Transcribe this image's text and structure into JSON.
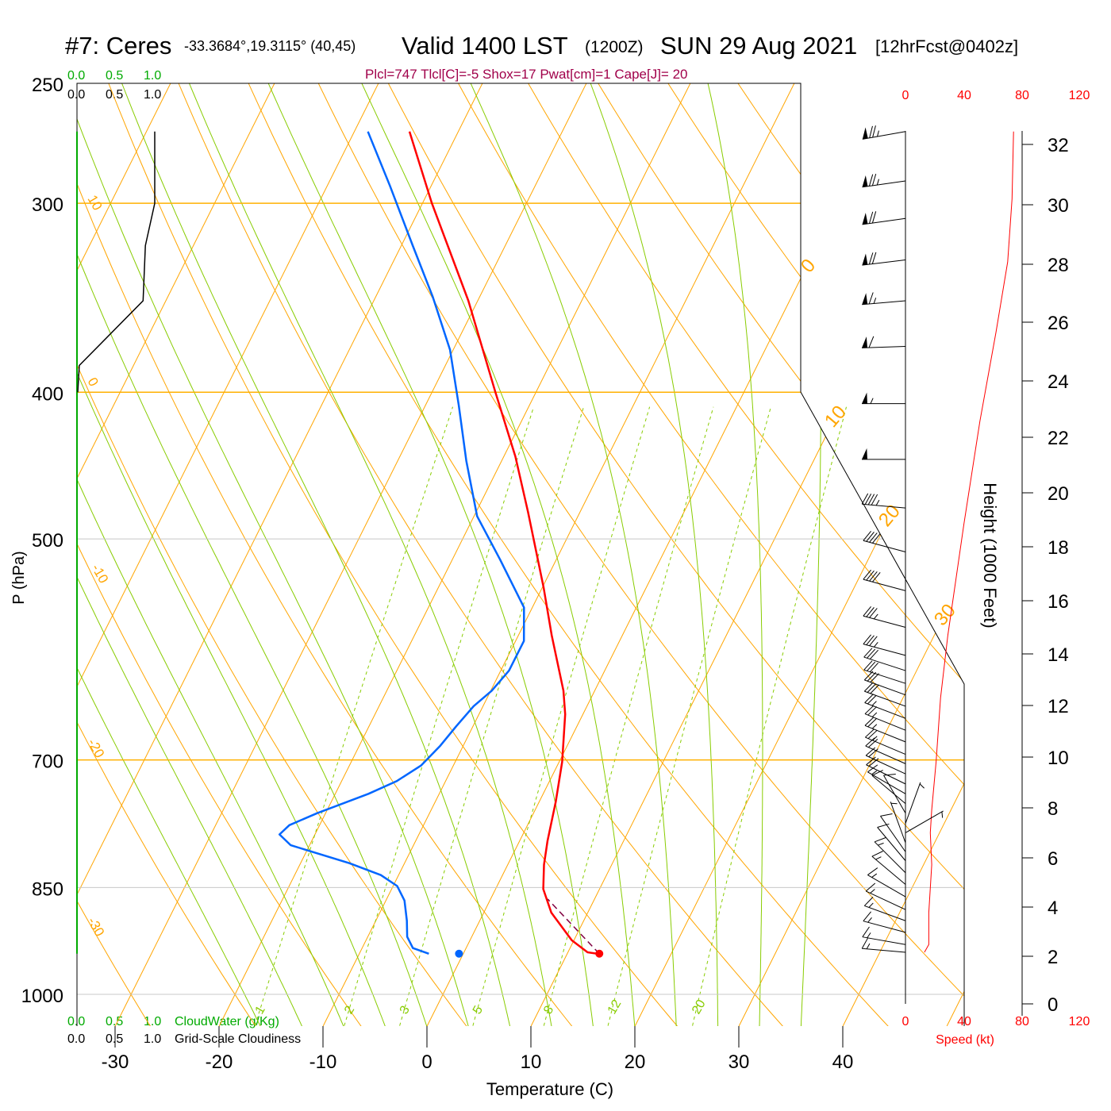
{
  "header": {
    "station": "#7: Ceres",
    "coords": "-33.3684°,19.3115° (40,45)",
    "valid": "Valid 1400 LST",
    "zulu": "(1200Z)",
    "date": "SUN 29 Aug 2021",
    "forecast": "[12hrFcst@0402z]",
    "indices": "Plcl=747 Tlcl[C]=-5 Shox=17 Pwat[cm]=1 Cape[J]= 20"
  },
  "cloud_scales": {
    "top_green": [
      "0.0",
      "0.5",
      "1.0"
    ],
    "top_black": [
      "0.0",
      "0.5",
      "1.0"
    ],
    "bottom_green": [
      "0.0",
      "0.5",
      "1.0"
    ],
    "bottom_green_label": "CloudWater (g/Kg)",
    "bottom_black": [
      "0.0",
      "0.5",
      "1.0"
    ],
    "bottom_black_label": "Grid-Scale Cloudiness"
  },
  "speed_axis": {
    "ticks": [
      "0",
      "40",
      "80",
      "120"
    ],
    "label": "Speed (kt)"
  },
  "colors": {
    "temperature": "#ff0000",
    "dewpoint": "#0066ff",
    "isotherm": "#ffa500",
    "moist": "#88cc00",
    "parcel": "#800040",
    "cloudwater": "#00aa00",
    "speed": "#ff0000"
  },
  "chart_data": {
    "type": "line",
    "title": "Skew-T log-P sounding",
    "xlabel": "Temperature (C)",
    "ylabel": "P (hPa)",
    "y2label": "Height (1000 Feet)",
    "x_ticks": [
      -30,
      -20,
      -10,
      0,
      10,
      20,
      30,
      40
    ],
    "p_ticks": [
      250,
      300,
      400,
      500,
      700,
      850,
      1000
    ],
    "height_ticks": [
      0,
      2,
      4,
      6,
      8,
      10,
      12,
      14,
      16,
      18,
      20,
      22,
      24,
      26,
      28,
      30,
      32
    ],
    "theta_labels": [
      "10",
      "0",
      "-10",
      "-20",
      "-30"
    ],
    "isotherm_labels": [
      "0",
      "10",
      "20",
      "30"
    ],
    "mixing_ratio_labels": [
      "1",
      "2",
      "3",
      "5",
      "8",
      "12",
      "20"
    ],
    "mixing_ratios": [
      1,
      2,
      3,
      5,
      8,
      12,
      20
    ],
    "temperature": [
      [
        269,
        -44.7
      ],
      [
        300,
        -39.1
      ],
      [
        348,
        -30.9
      ],
      [
        400,
        -23.9
      ],
      [
        441,
        -18.9
      ],
      [
        480,
        -15.0
      ],
      [
        538,
        -9.9
      ],
      [
        579,
        -6.8
      ],
      [
        630,
        -3.0
      ],
      [
        653,
        -1.7
      ],
      [
        702,
        0.3
      ],
      [
        746,
        1.6
      ],
      [
        792,
        2.7
      ],
      [
        821,
        3.5
      ],
      [
        852,
        4.6
      ],
      [
        883,
        6.5
      ],
      [
        921,
        9.8
      ],
      [
        938,
        11.9
      ],
      [
        940,
        12.9
      ]
    ],
    "dewpoint": [
      [
        269,
        -48.7
      ],
      [
        292,
        -44.0
      ],
      [
        320,
        -38.9
      ],
      [
        346,
        -34.5
      ],
      [
        375,
        -30.3
      ],
      [
        408,
        -26.8
      ],
      [
        444,
        -23.4
      ],
      [
        483,
        -19.7
      ],
      [
        516,
        -15.4
      ],
      [
        555,
        -10.8
      ],
      [
        584,
        -9.2
      ],
      [
        611,
        -9.2
      ],
      [
        630,
        -9.9
      ],
      [
        645,
        -10.9
      ],
      [
        665,
        -11.6
      ],
      [
        685,
        -12.2
      ],
      [
        706,
        -13.1
      ],
      [
        723,
        -14.7
      ],
      [
        737,
        -16.8
      ],
      [
        759,
        -20.8
      ],
      [
        773,
        -22.9
      ],
      [
        784,
        -23.4
      ],
      [
        797,
        -21.8
      ],
      [
        819,
        -15.3
      ],
      [
        834,
        -11.7
      ],
      [
        848,
        -9.6
      ],
      [
        867,
        -8.2
      ],
      [
        894,
        -7.0
      ],
      [
        916,
        -6.2
      ],
      [
        932,
        -5.1
      ],
      [
        940,
        -3.3
      ]
    ],
    "surface_temperature": [
      940,
      13.1
    ],
    "surface_dewpoint": [
      940,
      -0.4
    ],
    "parcel": [
      [
        940,
        13.1
      ],
      [
        865,
        5.5
      ]
    ],
    "cloud_fraction": [
      [
        269,
        1.0
      ],
      [
        300,
        1.0
      ],
      [
        320,
        0.88
      ],
      [
        348,
        0.85
      ],
      [
        384,
        0.03
      ],
      [
        400,
        0.01
      ]
    ],
    "cloud_water": [
      [
        269,
        0
      ],
      [
        940,
        0
      ]
    ],
    "wind_speed_kt": [
      [
        269,
        74
      ],
      [
        298,
        73
      ],
      [
        328,
        70
      ],
      [
        365,
        62
      ],
      [
        418,
        51
      ],
      [
        489,
        40
      ],
      [
        579,
        29
      ],
      [
        637,
        24
      ],
      [
        702,
        21
      ],
      [
        755,
        18
      ],
      [
        782,
        17
      ],
      [
        821,
        18
      ],
      [
        883,
        16
      ],
      [
        927,
        16
      ],
      [
        938,
        13
      ]
    ],
    "wind_barbs": [
      [
        269,
        260,
        74
      ],
      [
        290,
        262,
        73
      ],
      [
        307,
        262,
        72
      ],
      [
        327,
        263,
        70
      ],
      [
        348,
        265,
        66
      ],
      [
        373,
        268,
        60
      ],
      [
        407,
        270,
        55
      ],
      [
        443,
        270,
        50
      ],
      [
        477,
        275,
        45
      ],
      [
        510,
        285,
        40
      ],
      [
        541,
        285,
        38
      ],
      [
        572,
        285,
        35
      ],
      [
        597,
        285,
        33
      ],
      [
        611,
        288,
        31
      ],
      [
        623,
        288,
        30
      ],
      [
        634,
        290,
        29
      ],
      [
        645,
        290,
        28
      ],
      [
        657,
        291,
        27
      ],
      [
        669,
        292,
        26
      ],
      [
        681,
        292,
        25
      ],
      [
        694,
        293,
        24
      ],
      [
        704,
        294,
        22
      ],
      [
        715,
        295,
        21
      ],
      [
        726,
        296,
        20
      ],
      [
        737,
        300,
        17
      ],
      [
        748,
        310,
        12
      ],
      [
        759,
        330,
        8
      ],
      [
        771,
        20,
        5
      ],
      [
        782,
        60,
        5
      ],
      [
        794,
        340,
        7
      ],
      [
        805,
        325,
        9
      ],
      [
        816,
        320,
        10
      ],
      [
        831,
        315,
        13
      ],
      [
        846,
        310,
        15
      ],
      [
        862,
        300,
        16
      ],
      [
        879,
        295,
        17
      ],
      [
        894,
        290,
        17
      ],
      [
        910,
        285,
        17
      ],
      [
        927,
        280,
        15
      ],
      [
        938,
        275,
        13
      ]
    ]
  }
}
